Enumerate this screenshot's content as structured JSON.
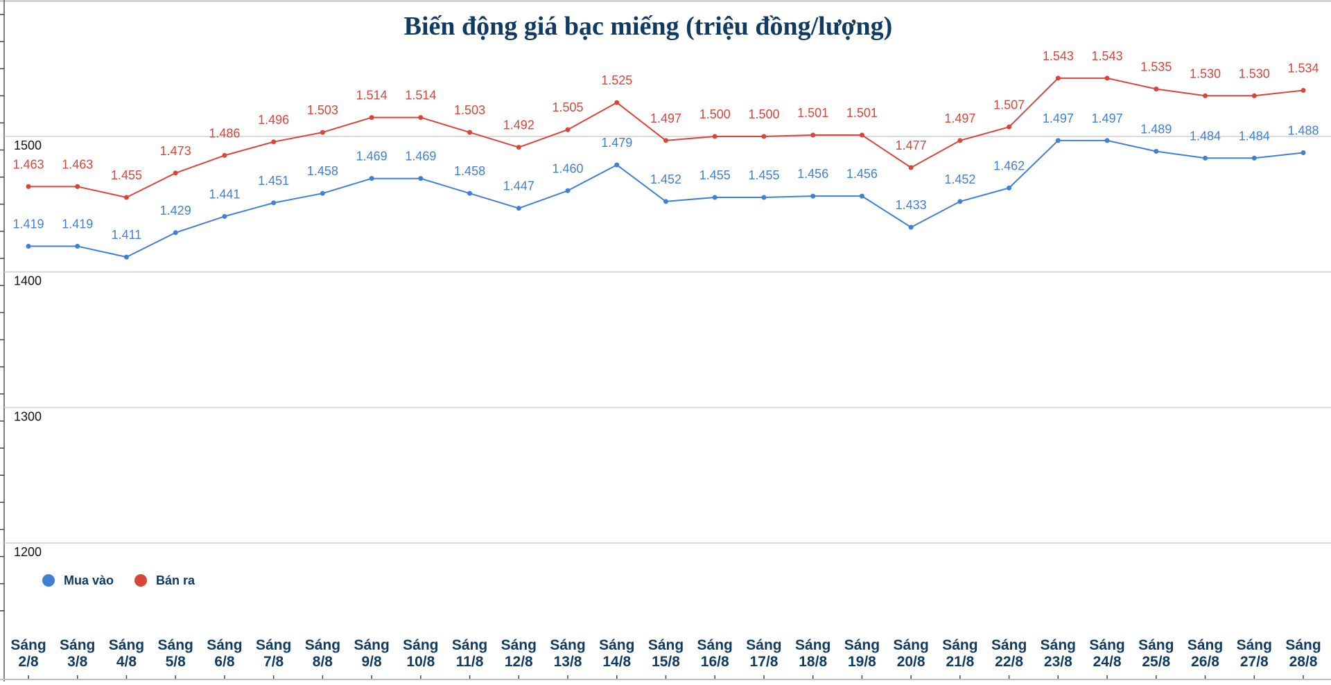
{
  "chart_data": {
    "type": "line",
    "title": "Biến động giá bạc miếng (triệu đồng/lượng)",
    "xlabel": "",
    "ylabel": "",
    "ylim": [
      1200,
      1500
    ],
    "yticks": [
      "1200",
      "1300",
      "1400",
      "1500"
    ],
    "grid": true,
    "legend_position": "bottom-left",
    "colors": {
      "title": "#0f3a63",
      "axis_text": "#0f3a63",
      "grid": "#cfcfcf",
      "mua_vao": "#3f7fd6",
      "ban_ra": "#d94538"
    },
    "categories": [
      [
        "Sáng",
        "2/8"
      ],
      [
        "Sáng",
        "3/8"
      ],
      [
        "Sáng",
        "4/8"
      ],
      [
        "Sáng",
        "5/8"
      ],
      [
        "Sáng",
        "6/8"
      ],
      [
        "Sáng",
        "7/8"
      ],
      [
        "Sáng",
        "8/8"
      ],
      [
        "Sáng",
        "9/8"
      ],
      [
        "Sáng",
        "10/8"
      ],
      [
        "Sáng",
        "11/8"
      ],
      [
        "Sáng",
        "12/8"
      ],
      [
        "Sáng",
        "13/8"
      ],
      [
        "Sáng",
        "14/8"
      ],
      [
        "Sáng",
        "15/8"
      ],
      [
        "Sáng",
        "16/8"
      ],
      [
        "Sáng",
        "17/8"
      ],
      [
        "Sáng",
        "18/8"
      ],
      [
        "Sáng",
        "19/8"
      ],
      [
        "Sáng",
        "20/8"
      ],
      [
        "Sáng",
        "21/8"
      ],
      [
        "Sáng",
        "22/8"
      ],
      [
        "Sáng",
        "23/8"
      ],
      [
        "Sáng",
        "24/8"
      ],
      [
        "Sáng",
        "25/8"
      ],
      [
        "Sáng",
        "26/8"
      ],
      [
        "Sáng",
        "27/8"
      ],
      [
        "Sáng",
        "28/8"
      ]
    ],
    "series": [
      {
        "name": "Mua vào",
        "color": "#3f7fd6",
        "values": [
          1419,
          1419,
          1411,
          1429,
          1441,
          1451,
          1458,
          1469,
          1469,
          1458,
          1447,
          1460,
          1479,
          1452,
          1455,
          1455,
          1456,
          1456,
          1433,
          1452,
          1462,
          1497,
          1497,
          1489,
          1484,
          1484,
          1488
        ],
        "labels": [
          "1.419",
          "1.419",
          "1.411",
          "1.429",
          "1.441",
          "1.451",
          "1.458",
          "1.469",
          "1.469",
          "1.458",
          "1.447",
          "1.460",
          "1.479",
          "1.452",
          "1.455",
          "1.455",
          "1.456",
          "1.456",
          "1.433",
          "1.452",
          "1.462",
          "1.497",
          "1.497",
          "1.489",
          "1.484",
          "1.484",
          "1.488"
        ]
      },
      {
        "name": "Bán ra",
        "color": "#d94538",
        "values": [
          1463,
          1463,
          1455,
          1473,
          1486,
          1496,
          1503,
          1514,
          1514,
          1503,
          1492,
          1505,
          1525,
          1497,
          1500,
          1500,
          1501,
          1501,
          1477,
          1497,
          1507,
          1543,
          1543,
          1535,
          1530,
          1530,
          1534
        ],
        "labels": [
          "1.463",
          "1.463",
          "1.455",
          "1.473",
          "1.486",
          "1.496",
          "1.503",
          "1.514",
          "1.514",
          "1.503",
          "1.492",
          "1.505",
          "1.525",
          "1.497",
          "1.500",
          "1.500",
          "1.501",
          "1.501",
          "1.477",
          "1.497",
          "1.507",
          "1.543",
          "1.543",
          "1.535",
          "1.530",
          "1.530",
          "1.534"
        ]
      }
    ]
  }
}
